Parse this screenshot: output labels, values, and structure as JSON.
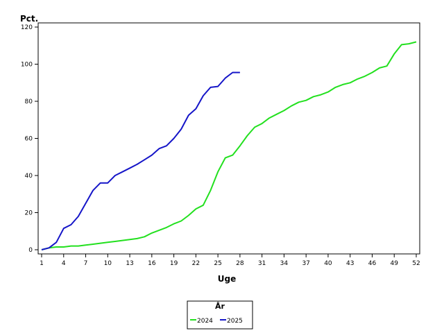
{
  "chart_data": {
    "type": "line",
    "ylabel": "Pct.",
    "xlabel": "Uge",
    "xlim": [
      1,
      52
    ],
    "ylim": [
      0,
      120
    ],
    "x_ticks": [
      1,
      4,
      7,
      10,
      13,
      16,
      19,
      22,
      25,
      28,
      31,
      34,
      37,
      40,
      43,
      46,
      49,
      52
    ],
    "y_ticks": [
      0,
      20,
      40,
      60,
      80,
      100,
      120
    ],
    "grid": false,
    "legend": {
      "title": "År",
      "placement": "bottom-center"
    },
    "series": [
      {
        "name": "2024",
        "color": "#22e01e",
        "x": [
          1,
          2,
          3,
          4,
          5,
          6,
          7,
          8,
          9,
          10,
          11,
          12,
          13,
          14,
          15,
          16,
          17,
          18,
          19,
          20,
          21,
          22,
          23,
          24,
          25,
          26,
          27,
          28,
          29,
          30,
          31,
          32,
          33,
          34,
          35,
          36,
          37,
          38,
          39,
          40,
          41,
          42,
          43,
          44,
          45,
          46,
          47,
          48,
          49,
          50,
          51,
          52
        ],
        "values": [
          0,
          1,
          1.5,
          1.5,
          2,
          2,
          2.5,
          3,
          3.5,
          4,
          4.5,
          5,
          5.5,
          6,
          7,
          9,
          10.5,
          12,
          14,
          15.5,
          18.5,
          22,
          24,
          32,
          42,
          49.5,
          51,
          56,
          61.5,
          66,
          68,
          71,
          73,
          75,
          77.5,
          79.5,
          80.5,
          82.5,
          83.5,
          85,
          87.5,
          89,
          90,
          92,
          93.5,
          95.5,
          98,
          99,
          105.5,
          110.5,
          111,
          112
        ]
      },
      {
        "name": "2025",
        "color": "#1515c8",
        "x": [
          1,
          2,
          3,
          4,
          5,
          6,
          7,
          8,
          9,
          10,
          11,
          12,
          13,
          14,
          15,
          16,
          17,
          18,
          19,
          20,
          21,
          22,
          23,
          24,
          25,
          26,
          27,
          28
        ],
        "values": [
          0,
          1,
          4,
          11.5,
          13.5,
          18,
          25,
          32,
          36,
          36,
          40,
          42,
          44,
          46,
          48.5,
          51,
          54.5,
          56,
          60,
          65,
          72.5,
          76,
          83,
          87.5,
          88,
          92.5,
          95.5,
          95.5
        ]
      }
    ]
  }
}
